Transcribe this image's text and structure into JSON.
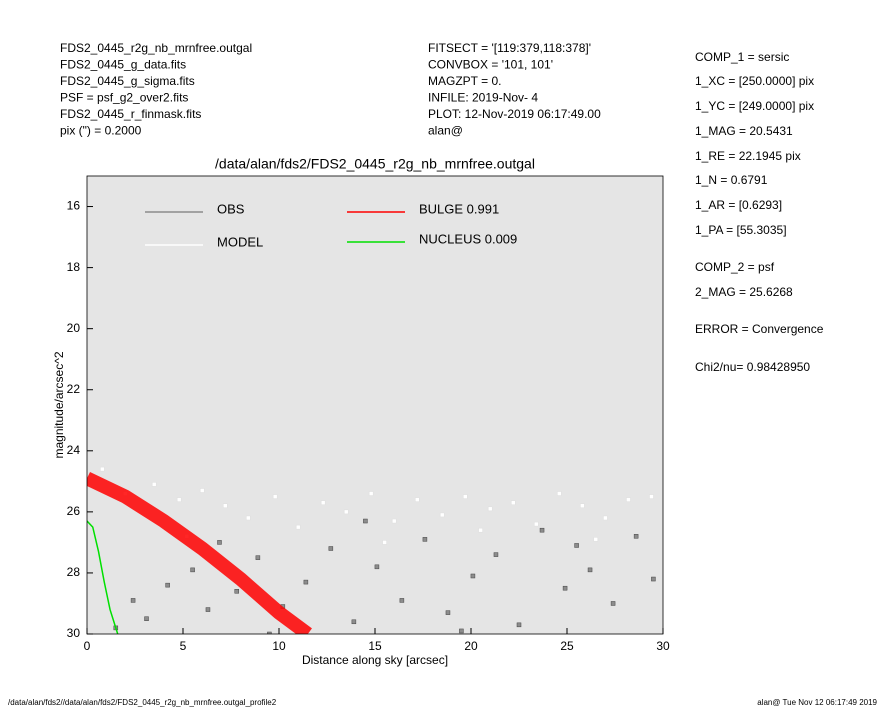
{
  "header": {
    "left": [
      "FDS2_0445_r2g_nb_mrnfree.outgal",
      "FDS2_0445_g_data.fits",
      "FDS2_0445_g_sigma.fits",
      "PSF    = psf_g2_over2.fits",
      "FDS2_0445_r_finmask.fits",
      "pix (\") =  0.2000"
    ],
    "middle": [
      "FITSECT = '[119:379,118:378]'",
      "CONVBOX = '101, 101'",
      "MAGZPT  =              0.",
      "INFILE: 2019-Nov- 4",
      "PLOT: 12-Nov-2019 06:17:49.00",
      "alan@"
    ]
  },
  "side_panel": [
    "COMP_1  = sersic",
    "1_XC    = [250.0000] pix",
    "1_YC    = [249.0000] pix",
    "1_MAG   = 20.5431",
    "1_RE    = 22.1945 pix",
    "1_N     = 0.6791",
    "1_AR    = [0.6293]",
    "1_PA    = [55.3035]",
    "COMP_2  = psf",
    "2_MAG   = 25.6268",
    "ERROR   = Convergence",
    "Chi2/nu=      0.98428950"
  ],
  "footer": {
    "left": "/data/alan/fds2//data/alan/fds2/FDS2_0445_r2g_nb_mrnfree.outgal_profile2",
    "right": "alan@  Tue Nov 12 06:17:49 2019"
  },
  "chart_data": {
    "type": "scatter",
    "title": "/data/alan/fds2/FDS2_0445_r2g_nb_mrnfree.outgal",
    "x_label": "Distance along sky [arcsec]",
    "y_label": "magnitude/arcsec^2",
    "xlim": [
      0,
      30
    ],
    "ylim": [
      15,
      30
    ],
    "y_inverted": true,
    "xticks": [
      0,
      5,
      10,
      15,
      20,
      25,
      30
    ],
    "yticks": [
      16,
      18,
      20,
      22,
      24,
      26,
      28,
      30
    ],
    "series": [
      {
        "name": "OBS",
        "color": "#8c8c8c",
        "mode": "points",
        "x": [
          1.5,
          2.4,
          3.1,
          4.2,
          5.5,
          6.3,
          7.8,
          8.9,
          10.2,
          11.4,
          12.7,
          13.9,
          15.1,
          16.4,
          17.6,
          18.8,
          20.1,
          21.3,
          22.5,
          23.7,
          24.9,
          26.2,
          27.4,
          28.6,
          29.5,
          9.5,
          14.5,
          19.5,
          25.5,
          6.9
        ],
        "values": [
          29.8,
          28.9,
          29.5,
          28.4,
          27.9,
          29.2,
          28.6,
          27.5,
          29.1,
          28.3,
          27.2,
          29.6,
          27.8,
          28.9,
          26.9,
          29.3,
          28.1,
          27.4,
          29.7,
          26.6,
          28.5,
          27.9,
          29.0,
          26.8,
          28.2,
          30.0,
          26.3,
          29.9,
          27.1,
          27.0
        ]
      },
      {
        "name": "MODEL",
        "color": "#ffffff",
        "mode": "points",
        "x": [
          0.8,
          2.0,
          3.5,
          4.8,
          6.0,
          7.2,
          8.4,
          9.8,
          11.0,
          12.3,
          13.5,
          14.8,
          16.0,
          17.2,
          18.5,
          19.7,
          21.0,
          22.2,
          23.4,
          24.6,
          25.8,
          27.0,
          28.2,
          29.4,
          5.2,
          15.5,
          20.5,
          26.5
        ],
        "values": [
          24.6,
          25.4,
          25.1,
          25.6,
          25.3,
          25.8,
          26.2,
          25.5,
          26.5,
          25.7,
          26.0,
          25.4,
          26.3,
          25.6,
          26.1,
          25.5,
          25.9,
          25.7,
          26.4,
          25.4,
          25.8,
          26.2,
          25.6,
          25.5,
          26.8,
          27.0,
          26.6,
          26.9
        ]
      },
      {
        "name": "BULGE  0.991",
        "color": "#ff0000",
        "mode": "line",
        "x": [
          0,
          2,
          4,
          6,
          8,
          10,
          11.5
        ],
        "values": [
          24.9,
          25.5,
          26.3,
          27.2,
          28.2,
          29.3,
          30
        ]
      },
      {
        "name": "NUCLEUS  0.009",
        "color": "#00e000",
        "mode": "line",
        "x": [
          0,
          0.3,
          0.6,
          0.9,
          1.2,
          1.6
        ],
        "values": [
          26.3,
          26.5,
          27.3,
          28.3,
          29.2,
          30
        ]
      }
    ]
  }
}
